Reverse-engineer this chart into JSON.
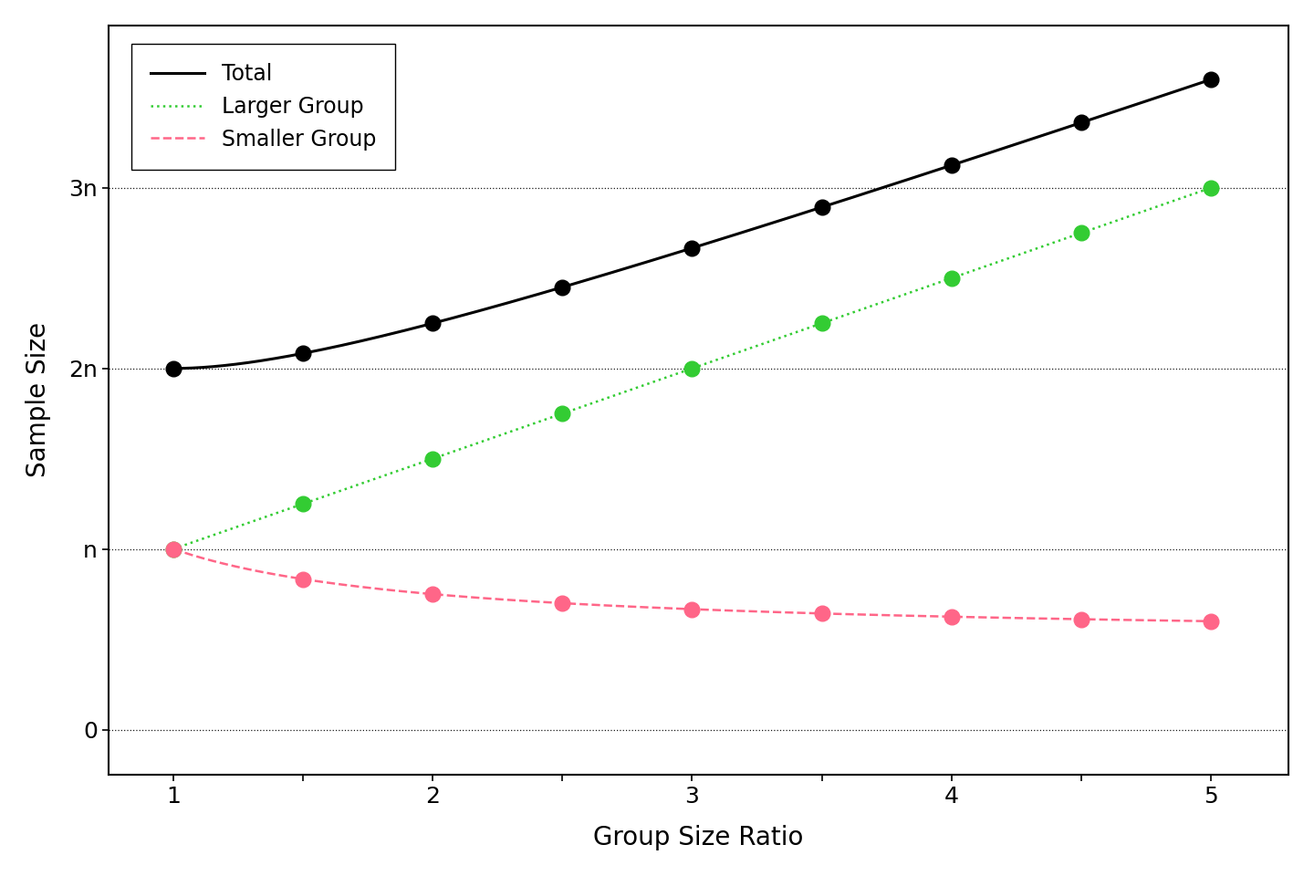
{
  "x_points": [
    1,
    1.5,
    2,
    2.5,
    3,
    3.5,
    4,
    4.5,
    5
  ],
  "yticks": [
    0,
    1,
    2,
    3
  ],
  "ytick_labels": [
    "0",
    "n",
    "2n",
    "3n"
  ],
  "xlabel": "Group Size Ratio",
  "ylabel": "Sample Size",
  "legend_labels": [
    "Total",
    "Larger Group",
    "Smaller Group"
  ],
  "total_color": "#000000",
  "larger_color": "#33cc33",
  "smaller_color": "#ff6688",
  "background_color": "#ffffff",
  "xlim": [
    0.75,
    5.3
  ],
  "ylim": [
    -0.25,
    3.9
  ],
  "axis_fontsize": 20,
  "tick_fontsize": 18,
  "legend_fontsize": 17,
  "markersize": 12,
  "linewidth_total": 2.2,
  "linewidth_others": 1.8
}
